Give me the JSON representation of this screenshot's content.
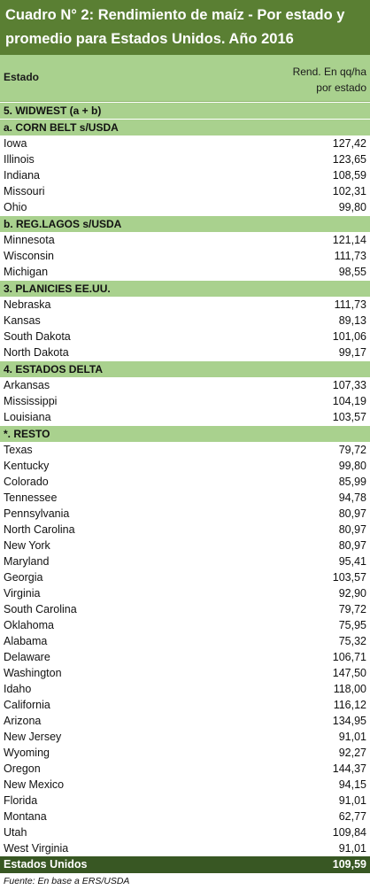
{
  "title": "Cuadro N° 2: Rendimiento de maíz - Por estado y promedio para Estados Unidos. Año 2016",
  "header": {
    "estado": "Estado",
    "rend_line1": "Rend. En qq/ha",
    "rend_line2": "por estado"
  },
  "sections": [
    {
      "label": "5. WIDWEST (a + b)",
      "rows": []
    },
    {
      "label": "a. CORN BELT s/USDA",
      "rows": [
        {
          "name": "Iowa",
          "value": "127,42"
        },
        {
          "name": "Illinois",
          "value": "123,65"
        },
        {
          "name": "Indiana",
          "value": "108,59"
        },
        {
          "name": "Missouri",
          "value": "102,31"
        },
        {
          "name": "Ohio",
          "value": "99,80"
        }
      ]
    },
    {
      "label": "b. REG.LAGOS s/USDA",
      "rows": [
        {
          "name": "Minnesota",
          "value": "121,14"
        },
        {
          "name": "Wisconsin",
          "value": "111,73"
        },
        {
          "name": "Michigan",
          "value": "98,55"
        }
      ]
    },
    {
      "label": "3. PLANICIES EE.UU.",
      "rows": [
        {
          "name": "Nebraska",
          "value": "111,73"
        },
        {
          "name": "Kansas",
          "value": "89,13"
        },
        {
          "name": "South Dakota",
          "value": "101,06"
        },
        {
          "name": "North Dakota",
          "value": "99,17"
        }
      ]
    },
    {
      "label": "4. ESTADOS DELTA",
      "rows": [
        {
          "name": "Arkansas",
          "value": "107,33"
        },
        {
          "name": "Mississippi",
          "value": "104,19"
        },
        {
          "name": "Louisiana",
          "value": "103,57"
        }
      ]
    },
    {
      "label": "*. RESTO",
      "rows": [
        {
          "name": "Texas",
          "value": "79,72"
        },
        {
          "name": "Kentucky",
          "value": "99,80"
        },
        {
          "name": "Colorado",
          "value": "85,99"
        },
        {
          "name": "Tennessee",
          "value": "94,78"
        },
        {
          "name": "Pennsylvania",
          "value": "80,97"
        },
        {
          "name": "North Carolina",
          "value": "80,97"
        },
        {
          "name": "New York",
          "value": "80,97"
        },
        {
          "name": "Maryland",
          "value": "95,41"
        },
        {
          "name": "Georgia",
          "value": "103,57"
        },
        {
          "name": "Virginia",
          "value": "92,90"
        },
        {
          "name": "South Carolina",
          "value": "79,72"
        },
        {
          "name": "Oklahoma",
          "value": "75,95"
        },
        {
          "name": "Alabama",
          "value": "75,32"
        },
        {
          "name": "Delaware",
          "value": "106,71"
        },
        {
          "name": "Washington",
          "value": "147,50"
        },
        {
          "name": "Idaho",
          "value": "118,00"
        },
        {
          "name": "California",
          "value": "116,12"
        },
        {
          "name": "Arizona",
          "value": "134,95"
        },
        {
          "name": "New Jersey",
          "value": "91,01"
        },
        {
          "name": "Wyoming",
          "value": "92,27"
        },
        {
          "name": "Oregon",
          "value": "144,37"
        },
        {
          "name": "New Mexico",
          "value": "94,15"
        },
        {
          "name": "Florida",
          "value": "91,01"
        },
        {
          "name": "Montana",
          "value": "62,77"
        },
        {
          "name": "Utah",
          "value": "109,84"
        },
        {
          "name": "West Virginia",
          "value": "91,01"
        }
      ]
    }
  ],
  "total": {
    "name": "Estados Unidos",
    "value": "109,59"
  },
  "source": "Fuente: En base a ERS/USDA",
  "colors": {
    "title_bg": "#5a7f33",
    "section_bg": "#a9d18e",
    "total_bg": "#385723"
  }
}
